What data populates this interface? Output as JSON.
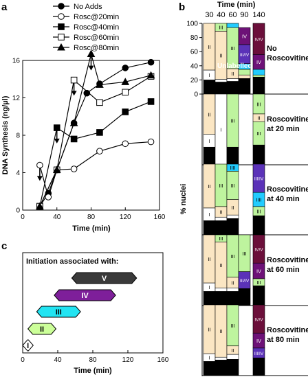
{
  "panel_labels": {
    "a": "a",
    "b": "b",
    "c": "c"
  },
  "chart_data": [
    {
      "type": "line",
      "panel": "a",
      "title": "",
      "xlabel": "Time (min)",
      "ylabel": "DNA Synthesis (ng/µl)",
      "xlim": [
        0,
        160
      ],
      "ylim": [
        0,
        16
      ],
      "xticks": [
        "0",
        "40",
        "80",
        "120",
        "160"
      ],
      "yticks": [
        "0",
        "4",
        "8",
        "12",
        "16"
      ],
      "legend_position": "top",
      "series": [
        {
          "name": "No Adds",
          "marker": "filled-circle",
          "points": [
            [
              20,
              0.4
            ],
            [
              30,
              1.8
            ],
            [
              40,
              4.3
            ],
            [
              60,
              9.3
            ],
            [
              75,
              12.5
            ],
            [
              90,
              13.5
            ],
            [
              120,
              15.2
            ],
            [
              150,
              15.8
            ]
          ]
        },
        {
          "name": "Rosc@20min",
          "marker": "open-circle",
          "points": [
            [
              20,
              4.8
            ],
            [
              30,
              1.4
            ],
            [
              40,
              4.3
            ],
            [
              60,
              4.4
            ],
            [
              90,
              6.3
            ],
            [
              120,
              7.1
            ],
            [
              150,
              7.3
            ]
          ]
        },
        {
          "name": "Rosc@40min",
          "marker": "filled-square",
          "points": [
            [
              20,
              0.4
            ],
            [
              40,
              8.8
            ],
            [
              60,
              7.6
            ],
            [
              90,
              8.3
            ],
            [
              120,
              10.5
            ],
            [
              150,
              11.6
            ]
          ]
        },
        {
          "name": "Rosc@60min",
          "marker": "open-square",
          "points": [
            [
              20,
              0.4
            ],
            [
              40,
              4.3
            ],
            [
              60,
              13.9
            ],
            [
              90,
              11.5
            ],
            [
              120,
              12.6
            ],
            [
              150,
              14.3
            ]
          ]
        },
        {
          "name": "Rosc@80min",
          "marker": "filled-triangle",
          "points": [
            [
              20,
              0.4
            ],
            [
              40,
              4.3
            ],
            [
              60,
              9.3
            ],
            [
              80,
              16.7
            ],
            [
              90,
              13.4
            ],
            [
              120,
              13.7
            ],
            [
              150,
              14.4
            ]
          ]
        }
      ],
      "arrows_at_x": [
        20,
        40,
        60,
        80
      ]
    },
    {
      "type": "bar",
      "panel": "b",
      "stacked": true,
      "xlabel": "Time (min)",
      "ylabel": "% nuclei",
      "ylim": [
        0,
        100
      ],
      "yticks": [
        "0",
        "20",
        "40",
        "60",
        "80",
        "100"
      ],
      "categories": [
        "30",
        "40",
        "60",
        "90",
        "140"
      ],
      "colors": {
        "0": "#000000",
        "I": "#ffffff",
        "II": "#fbe6c3",
        "III": "#bef49e",
        "IIII": "#22ccff",
        "III/IV": "#5b32b8",
        "IV": "#6d1177",
        "IV/V": "#6b0f3a"
      },
      "unlabelled_label": "Unlabelled",
      "conditions": [
        {
          "label": "No Roscovitine",
          "bars": [
            [
              [
                "0",
                20
              ],
              [
                "I",
                14
              ],
              [
                "II",
                66
              ]
            ],
            [
              [
                "0",
                17
              ],
              [
                "I",
                4
              ],
              [
                "II",
                68
              ],
              [
                "III",
                11
              ]
            ],
            [
              [
                "0",
                18
              ],
              [
                "I",
                4
              ],
              [
                "II",
                14
              ],
              [
                "III",
                58
              ],
              [
                "IIII",
                6
              ]
            ],
            [
              [
                "0",
                22
              ],
              [
                "II",
                5
              ],
              [
                "III",
                8
              ],
              [
                "IIII",
                8
              ],
              [
                "III/IV",
                27
              ],
              [
                "IV",
                24
              ]
            ],
            [
              [
                "0",
                24
              ],
              [
                "III",
                3
              ],
              [
                "IIII",
                8
              ],
              [
                "IV",
                21
              ],
              [
                "IV/V",
                44
              ]
            ]
          ]
        },
        {
          "label": "Roscovitine at 20 min",
          "bars": [
            [
              [
                "0",
                25
              ],
              [
                "I",
                18
              ],
              [
                "II",
                57
              ]
            ],
            [
              [
                "0",
                0
              ],
              [
                "I",
                100
              ]
            ],
            [
              [
                "0",
                25
              ],
              [
                "III",
                75
              ]
            ],
            [
              [
                "0",
                0
              ]
            ],
            [
              [
                "0",
                28
              ],
              [
                "III",
                33
              ],
              [
                "II",
                11
              ],
              [
                "III",
                28
              ]
            ]
          ]
        },
        {
          "label": "Roscovitine at 40 min",
          "bars": [
            [
              [
                "0",
                20
              ],
              [
                "I",
                18
              ],
              [
                "II",
                62
              ]
            ],
            [
              [
                "0",
                20
              ],
              [
                "I",
                5
              ],
              [
                "II",
                15
              ],
              [
                "III",
                60
              ]
            ],
            [
              [
                "0",
                23
              ],
              [
                "I",
                5
              ],
              [
                "II",
                22
              ],
              [
                "III",
                40
              ],
              [
                "IIII",
                10
              ]
            ],
            [
              [
                "0",
                0
              ]
            ],
            [
              [
                "0",
                27
              ],
              [
                "III",
                13
              ],
              [
                "IIII",
                20
              ],
              [
                "III/IV",
                40
              ]
            ]
          ]
        },
        {
          "label": "Roscovitine at 60 min",
          "bars": [
            [
              [
                "0",
                20
              ],
              [
                "I",
                12
              ],
              [
                "II",
                68
              ]
            ],
            [
              [
                "0",
                20
              ],
              [
                "I",
                5
              ],
              [
                "II",
                65
              ],
              [
                "III",
                10
              ]
            ],
            [
              [
                "0",
                20
              ],
              [
                "I",
                5
              ],
              [
                "II",
                15
              ],
              [
                "III",
                60
              ]
            ],
            [
              [
                "0",
                24
              ],
              [
                "III/IV",
                24
              ],
              [
                "III",
                52
              ]
            ],
            [
              [
                "0",
                28
              ],
              [
                "III",
                10
              ],
              [
                "IV",
                22
              ],
              [
                "IV/V",
                40
              ]
            ]
          ]
        },
        {
          "label": "Roscovitine at 80 min",
          "bars": [
            [
              [
                "0",
                20
              ],
              [
                "I",
                11
              ],
              [
                "II",
                69
              ]
            ],
            [
              [
                "0",
                22
              ],
              [
                "I",
                4
              ],
              [
                "II",
                74
              ]
            ],
            [
              [
                "0",
                23
              ],
              [
                "I",
                7
              ],
              [
                "II",
                12
              ],
              [
                "III",
                58
              ]
            ],
            [
              [
                "0",
                0
              ]
            ],
            [
              [
                "0",
                25
              ],
              [
                "III/IV",
                14
              ],
              [
                "IV",
                21
              ],
              [
                "IV/V",
                40
              ]
            ]
          ]
        }
      ]
    },
    {
      "type": "bar",
      "panel": "c",
      "subtype": "horizontal-range",
      "title": "Initiation associated with:",
      "xlabel": "Time (min)",
      "xlim": [
        0,
        160
      ],
      "xticks": [
        "0",
        "40",
        "80",
        "120",
        "160"
      ],
      "ranges": [
        {
          "label": "I",
          "start": 0,
          "end": 12,
          "color": "#ffffff"
        },
        {
          "label": "II",
          "start": 6,
          "end": 38,
          "color": "#ccff99"
        },
        {
          "label": "III",
          "start": 16,
          "end": 66,
          "color": "#22e4f2"
        },
        {
          "label": "IV",
          "start": 36,
          "end": 106,
          "color": "#7e1f9a"
        },
        {
          "label": "V",
          "start": 56,
          "end": 130,
          "color": "#3a3a3a"
        }
      ]
    }
  ]
}
